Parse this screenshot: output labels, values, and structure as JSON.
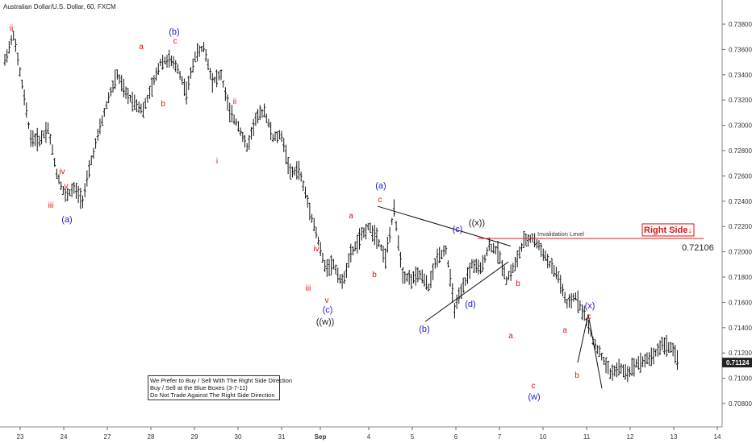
{
  "chart_title": "Australian Dollar/U.S. Dollar, 60, FXCM",
  "notes": [
    "We Prefer to Buy / Sell With The Right Side Direction",
    "Buy / Sell at the Blue Boxes (3-7-11)",
    "Do Not Trade Against The Right Side Direction"
  ],
  "colors": {
    "red_label": "#dd1111",
    "blue_label": "#2222cc",
    "black_label": "#222222",
    "invalidation_line": "#dd2222",
    "right_side_box": "#dd1111",
    "current_price_box": "#222222",
    "candles": "#111111"
  },
  "chart_data": {
    "type": "candlestick",
    "title": "Australian Dollar/U.S. Dollar, 60, FXCM",
    "x_ticks": [
      "23",
      "24",
      "27",
      "28",
      "29",
      "30",
      "31",
      "Sep",
      "4",
      "5",
      "6",
      "7",
      "10",
      "11",
      "12",
      "13",
      "14"
    ],
    "y_ticks": [
      "0.73800",
      "0.73600",
      "0.73400",
      "0.73200",
      "0.73000",
      "0.72800",
      "0.72600",
      "0.72400",
      "0.72200",
      "0.72000",
      "0.71800",
      "0.71600",
      "0.71400",
      "0.71200",
      "0.71000",
      "0.70800"
    ],
    "ylim": [
      0.7068,
      0.7395
    ],
    "invalidation": {
      "label": "Invalidation Level",
      "price": "0.72106",
      "value": 0.72106
    },
    "right_side_label": "Right Side↓",
    "current_price": "0.71124",
    "price_path": [
      [
        0,
        0.7351
      ],
      [
        1,
        0.7372
      ],
      [
        2,
        0.7332
      ],
      [
        3,
        0.729
      ],
      [
        4,
        0.7288
      ],
      [
        5,
        0.7298
      ],
      [
        6,
        0.7262
      ],
      [
        7,
        0.7244
      ],
      [
        8,
        0.725
      ],
      [
        9,
        0.7241
      ],
      [
        10,
        0.7272
      ],
      [
        11,
        0.7298
      ],
      [
        12,
        0.7322
      ],
      [
        13,
        0.734
      ],
      [
        14,
        0.7325
      ],
      [
        15,
        0.7318
      ],
      [
        16,
        0.7312
      ],
      [
        17,
        0.733
      ],
      [
        18,
        0.735
      ],
      [
        19,
        0.7352
      ],
      [
        20,
        0.7345
      ],
      [
        21,
        0.7326
      ],
      [
        22,
        0.7355
      ],
      [
        23,
        0.7362
      ],
      [
        24,
        0.7335
      ],
      [
        25,
        0.734
      ],
      [
        26,
        0.731
      ],
      [
        27,
        0.73
      ],
      [
        28,
        0.7282
      ],
      [
        29,
        0.7305
      ],
      [
        30,
        0.7312
      ],
      [
        31,
        0.729
      ],
      [
        32,
        0.7292
      ],
      [
        33,
        0.7262
      ],
      [
        34,
        0.7265
      ],
      [
        35,
        0.724
      ],
      [
        36,
        0.7215
      ],
      [
        37,
        0.7188
      ],
      [
        38,
        0.719
      ],
      [
        39,
        0.7175
      ],
      [
        40,
        0.7198
      ],
      [
        41,
        0.721
      ],
      [
        42,
        0.722
      ],
      [
        43,
        0.7212
      ],
      [
        44,
        0.7195
      ],
      [
        45,
        0.7233
      ],
      [
        46,
        0.7182
      ],
      [
        47,
        0.7178
      ],
      [
        48,
        0.7182
      ],
      [
        49,
        0.7172
      ],
      [
        50,
        0.7196
      ],
      [
        51,
        0.7202
      ],
      [
        52,
        0.7155
      ],
      [
        53,
        0.7172
      ],
      [
        54,
        0.719
      ],
      [
        55,
        0.7186
      ],
      [
        56,
        0.7205
      ],
      [
        57,
        0.72
      ],
      [
        58,
        0.7178
      ],
      [
        59,
        0.719
      ],
      [
        60,
        0.7208
      ],
      [
        61,
        0.7211
      ],
      [
        62,
        0.7202
      ],
      [
        63,
        0.719
      ],
      [
        64,
        0.718
      ],
      [
        65,
        0.7158
      ],
      [
        66,
        0.7165
      ],
      [
        67,
        0.715
      ],
      [
        68,
        0.713
      ],
      [
        69,
        0.7117
      ],
      [
        70,
        0.7104
      ],
      [
        71,
        0.7108
      ],
      [
        72,
        0.7104
      ],
      [
        73,
        0.7112
      ],
      [
        74,
        0.7114
      ],
      [
        75,
        0.7118
      ],
      [
        76,
        0.7127
      ],
      [
        77,
        0.7124
      ],
      [
        78,
        0.7112
      ]
    ],
    "projection": [
      [
        79,
        0.71124
      ],
      [
        80,
        0.71505
      ],
      [
        81,
        0.7092
      ]
    ],
    "triangle": {
      "upper": [
        [
          0.7236,
          "a"
        ],
        [
          0.72045,
          "b"
        ]
      ],
      "lower": [
        [
          0.71448,
          "a"
        ],
        [
          0.7192,
          "b"
        ]
      ]
    },
    "labels": [
      {
        "text": "ii",
        "color": "red"
      },
      {
        "text": "iii",
        "color": "red"
      },
      {
        "text": "iv",
        "color": "red"
      },
      {
        "text": "v",
        "color": "red"
      },
      {
        "text": "(a)",
        "color": "blue"
      },
      {
        "text": "a",
        "color": "red"
      },
      {
        "text": "b",
        "color": "red"
      },
      {
        "text": "(b)",
        "color": "blue"
      },
      {
        "text": "c",
        "color": "red"
      },
      {
        "text": "ii",
        "color": "red"
      },
      {
        "text": "i",
        "color": "red"
      },
      {
        "text": "iv",
        "color": "red"
      },
      {
        "text": "iii",
        "color": "red"
      },
      {
        "text": "v",
        "color": "red"
      },
      {
        "text": "(c)",
        "color": "blue"
      },
      {
        "text": "((w))",
        "color": "black"
      },
      {
        "text": "a",
        "color": "red"
      },
      {
        "text": "(a)",
        "color": "blue"
      },
      {
        "text": "c",
        "color": "red"
      },
      {
        "text": "b",
        "color": "red"
      },
      {
        "text": "(b)",
        "color": "blue"
      },
      {
        "text": "(c)",
        "color": "blue"
      },
      {
        "text": "((x))",
        "color": "black"
      },
      {
        "text": "(d)",
        "color": "blue"
      },
      {
        "text": "b",
        "color": "red"
      },
      {
        "text": "a",
        "color": "red"
      },
      {
        "text": "c",
        "color": "red"
      },
      {
        "text": "(w)",
        "color": "blue"
      },
      {
        "text": "a",
        "color": "red"
      },
      {
        "text": "b",
        "color": "red"
      },
      {
        "text": "(x)",
        "color": "blue"
      },
      {
        "text": "c",
        "color": "red"
      }
    ]
  }
}
